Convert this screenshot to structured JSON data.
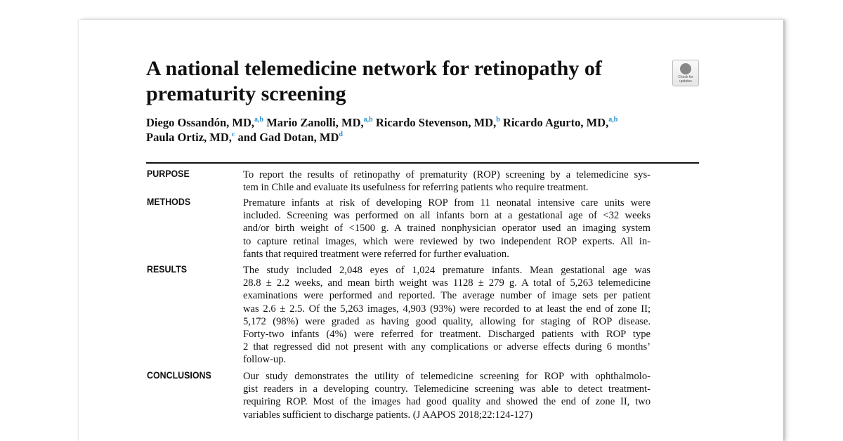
{
  "article": {
    "title_lines": [
      "A national telemedicine network for retinopathy of",
      "prematurity screening"
    ],
    "authors": [
      {
        "name": "Diego Ossandón, MD,",
        "aff": "a,b"
      },
      {
        "name": "Mario Zanolli, MD,",
        "aff": "a,b"
      },
      {
        "name": "Ricardo Stevenson, MD,",
        "aff": "b"
      },
      {
        "name": "Ricardo Agurto, MD,",
        "aff": "a,b"
      },
      {
        "name": "Paula Ortiz, MD,",
        "aff": "c"
      },
      {
        "name": "and Gad Dotan, MD",
        "aff": "d"
      }
    ],
    "badge": {
      "icon": "check-for-updates-icon",
      "text": "Check for updates"
    },
    "accent_color": "#2a8fcf"
  },
  "abstract": [
    {
      "label": "PURPOSE",
      "lines": [
        "To report the results of retinopathy of prematurity (ROP) screening by a telemedicine sys-",
        "tem in Chile and evaluate its usefulness for referring patients who require treatment."
      ]
    },
    {
      "label": "METHODS",
      "lines": [
        "Premature infants at risk of developing ROP from 11 neonatal intensive care units were",
        "included. Screening was performed on all infants born at a gestational age of <32 weeks",
        "and/or birth weight of <1500 g. A trained nonphysician operator used an imaging system",
        "to capture retinal images, which were reviewed by two independent ROP experts. All in-",
        "fants that required treatment were referred for further evaluation."
      ]
    },
    {
      "label": "RESULTS",
      "lines": [
        "The study included 2,048 eyes of 1,024 premature infants. Mean gestational age was",
        "28.8 ± 2.2 weeks, and mean birth weight was 1128 ± 279 g. A total of 5,263 telemedicine",
        "examinations were performed and reported. The average number of image sets per patient",
        "was 2.6 ± 2.5. Of the 5,263 images, 4,903 (93%) were recorded to at least the end of zone II;",
        "5,172 (98%) were graded as having good quality, allowing for staging of ROP disease.",
        "Forty-two infants (4%) were referred for treatment. Discharged patients with ROP type",
        "2 that regressed did not present with any complications or adverse effects during 6 months’",
        "follow-up."
      ]
    },
    {
      "label": "CONCLUSIONS",
      "lines": [
        "Our study demonstrates the utility of telemedicine screening for ROP with ophthalmolo-",
        "gist readers in a developing country. Telemedicine screening was able to detect treatment-",
        "requiring ROP. Most of the images had good quality and showed the end of zone II, two",
        "variables sufficient to discharge patients.    (J AAPOS 2018;22:124-127)"
      ]
    }
  ]
}
